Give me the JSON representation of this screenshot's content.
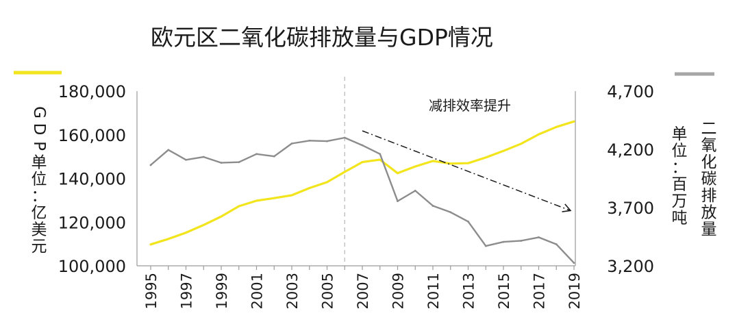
{
  "chart_data": {
    "type": "line",
    "title": "欧元区二氧化碳排放量与GDP情况",
    "x": [
      1995,
      1996,
      1997,
      1998,
      1999,
      2000,
      2001,
      2002,
      2003,
      2004,
      2005,
      2006,
      2007,
      2008,
      2009,
      2010,
      2011,
      2012,
      2013,
      2014,
      2015,
      2016,
      2017,
      2018,
      2019
    ],
    "x_tick_labels": [
      "1995",
      "1997",
      "1999",
      "2001",
      "2003",
      "2005",
      "2007",
      "2009",
      "2011",
      "2013",
      "2015",
      "2017",
      "2019"
    ],
    "y_left": {
      "label_chars": [
        "G",
        "D",
        "P",
        "单",
        "位",
        "：",
        "亿",
        "美",
        "元"
      ],
      "ylim": [
        100000,
        180000
      ],
      "ticks": [
        100000,
        120000,
        140000,
        160000,
        180000
      ],
      "tick_labels": [
        "100,000",
        "120,000",
        "140,000",
        "160,000",
        "180,000"
      ]
    },
    "y_right": {
      "label_main_chars": [
        "二",
        "氧",
        "化",
        "碳",
        "排",
        "放",
        "量"
      ],
      "label_unit_chars": [
        "单",
        "位",
        "：",
        "百",
        "万",
        "吨"
      ],
      "ylim": [
        3200,
        4700
      ],
      "ticks": [
        3200,
        3700,
        4200,
        4700
      ],
      "tick_labels": [
        "3,200",
        "3,700",
        "4,200",
        "4,700"
      ]
    },
    "series": [
      {
        "axis": "left",
        "color": "#f2e51d",
        "values": [
          109800,
          112300,
          115200,
          118700,
          122600,
          127300,
          129800,
          131000,
          132300,
          135600,
          138300,
          143000,
          147500,
          148600,
          142400,
          145500,
          148000,
          146800,
          147000,
          149600,
          152600,
          155900,
          160200,
          163600,
          166100
        ]
      },
      {
        "axis": "right",
        "color": "#8c8c8c",
        "values": [
          4065,
          4195,
          4110,
          4135,
          4085,
          4090,
          4160,
          4140,
          4250,
          4275,
          4270,
          4300,
          4235,
          4160,
          3755,
          3845,
          3715,
          3660,
          3580,
          3370,
          3405,
          3415,
          3445,
          3385,
          3225
        ]
      }
    ],
    "reference_line_x": 2006,
    "annotation": {
      "text": "减排效率提升",
      "arrow_from": {
        "x": 2007,
        "y_left": 161800
      },
      "arrow_to": {
        "x": 2019,
        "y_left": 125400
      }
    },
    "grid": false
  }
}
